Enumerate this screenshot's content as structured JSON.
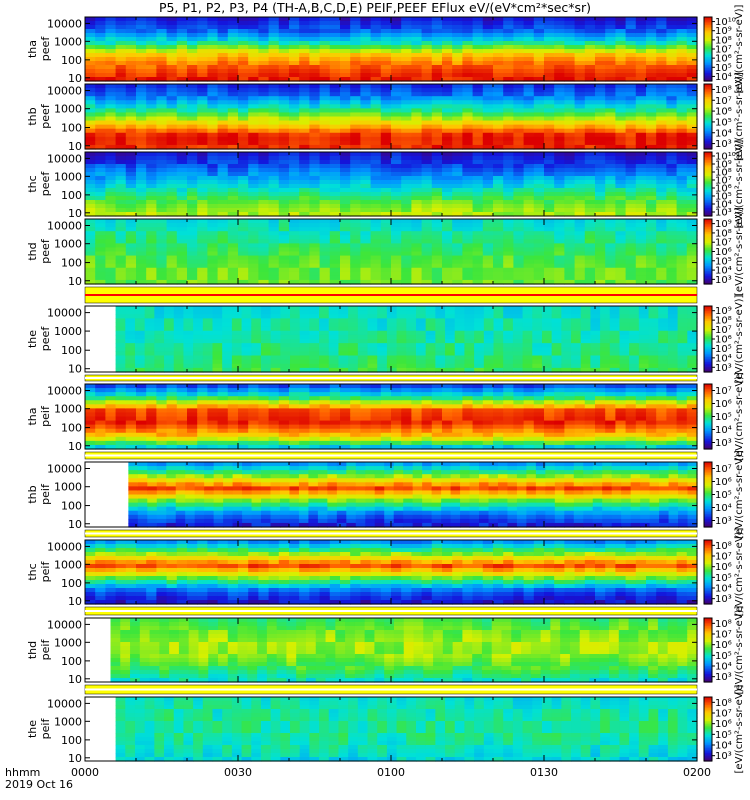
{
  "chart_data": {
    "type": "heatmap",
    "title": "P5, P1, P2, P3, P4 (TH-A,B,C,D,E) PEIF,PEEF EFlux eV/(eV*cm²*sec*sr)",
    "x_axis": {
      "label_line1": "hhmm",
      "label_line2": "2019 Oct 16",
      "ticks": [
        "0000",
        "0030",
        "0100",
        "0130",
        "0200"
      ],
      "range_minutes": [
        0,
        120
      ]
    },
    "y_scale": "log",
    "y_ticks": [
      "10",
      "100",
      "1000",
      "10000"
    ],
    "colorbar_label": "[eV/(cm²-s-sr-eV)]",
    "panels": [
      {
        "label": "tha\npeef",
        "ylabel_line1": "tha",
        "ylabel_line2": "peef",
        "species": "electron",
        "data_start_min": 0,
        "cb_ticks": [
          "10⁴",
          "10⁵",
          "10⁶",
          "10⁷",
          "10⁸",
          "10⁹",
          "10¹⁰"
        ],
        "profile": [
          0.98,
          0.9,
          0.75,
          0.42,
          0.2,
          0.1
        ]
      },
      {
        "label": "thb\npeef",
        "ylabel_line1": "thb",
        "ylabel_line2": "peef",
        "species": "electron",
        "data_start_min": 0,
        "cb_ticks": [
          "10³",
          "10⁴",
          "10⁵",
          "10⁶",
          "10⁷",
          "10⁸"
        ],
        "profile": [
          0.95,
          0.97,
          0.7,
          0.45,
          0.25,
          0.15
        ]
      },
      {
        "label": "thc\npeef",
        "ylabel_line1": "thc",
        "ylabel_line2": "peef",
        "species": "electron",
        "data_start_min": 0,
        "cb_ticks": [
          "10³",
          "10⁴",
          "10⁵",
          "10⁶",
          "10⁷",
          "10⁸",
          "10⁹",
          "10¹⁰"
        ],
        "profile": [
          0.62,
          0.55,
          0.42,
          0.3,
          0.18,
          0.1
        ]
      },
      {
        "label": "thd\npeef",
        "ylabel_line1": "thd",
        "ylabel_line2": "peef",
        "species": "electron",
        "data_start_min": 0,
        "cb_ticks": [
          "10³",
          "10⁴",
          "10⁵",
          "10⁶",
          "10⁷",
          "10⁸",
          "10⁹"
        ],
        "profile": [
          0.55,
          0.55,
          0.52,
          0.48,
          0.44,
          0.4
        ]
      },
      {
        "label": "the\npeef",
        "ylabel_line1": "the",
        "ylabel_line2": "peef",
        "species": "electron",
        "data_start_min": 6,
        "cb_ticks": [
          "10³",
          "10⁴",
          "10⁵",
          "10⁶",
          "10⁷",
          "10⁸",
          "10⁹"
        ],
        "profile": [
          0.5,
          0.47,
          0.45,
          0.43,
          0.42,
          0.4
        ]
      },
      {
        "label": "tha\npeif",
        "ylabel_line1": "tha",
        "ylabel_line2": "peif",
        "species": "ion",
        "data_start_min": 0,
        "cb_ticks": [
          "10³",
          "10⁴",
          "10⁵",
          "10⁶",
          "10⁷"
        ],
        "profile": [
          0.3,
          0.75,
          0.95,
          0.9,
          0.45,
          0.15
        ]
      },
      {
        "label": "thb\npeif",
        "ylabel_line1": "thb",
        "ylabel_line2": "peif",
        "species": "ion",
        "data_start_min": 8.5,
        "cb_ticks": [
          "10³",
          "10⁴",
          "10⁵",
          "10⁶",
          "10⁷"
        ],
        "profile": [
          0.1,
          0.25,
          0.55,
          0.92,
          0.55,
          0.25
        ]
      },
      {
        "label": "thc\npeif",
        "ylabel_line1": "thc",
        "ylabel_line2": "peif",
        "species": "ion",
        "data_start_min": 0,
        "cb_ticks": [
          "10³",
          "10⁴",
          "10⁵",
          "10⁶",
          "10⁷",
          "10⁸"
        ],
        "profile": [
          0.08,
          0.2,
          0.55,
          0.92,
          0.55,
          0.22
        ]
      },
      {
        "label": "thd\npeif",
        "ylabel_line1": "thd",
        "ylabel_line2": "peif",
        "species": "ion",
        "data_start_min": 5,
        "cb_ticks": [
          "10³",
          "10⁴",
          "10⁵",
          "10⁶",
          "10⁷",
          "10⁸"
        ],
        "profile": [
          0.4,
          0.5,
          0.58,
          0.6,
          0.56,
          0.5
        ]
      },
      {
        "label": "the\npeif",
        "ylabel_line1": "the",
        "ylabel_line2": "peif",
        "species": "ion",
        "data_start_min": 6,
        "cb_ticks": [
          "10³",
          "10⁴",
          "10⁵",
          "10⁶",
          "10⁷",
          "10⁸"
        ],
        "profile": [
          0.38,
          0.42,
          0.45,
          0.45,
          0.43,
          0.4
        ]
      }
    ]
  }
}
